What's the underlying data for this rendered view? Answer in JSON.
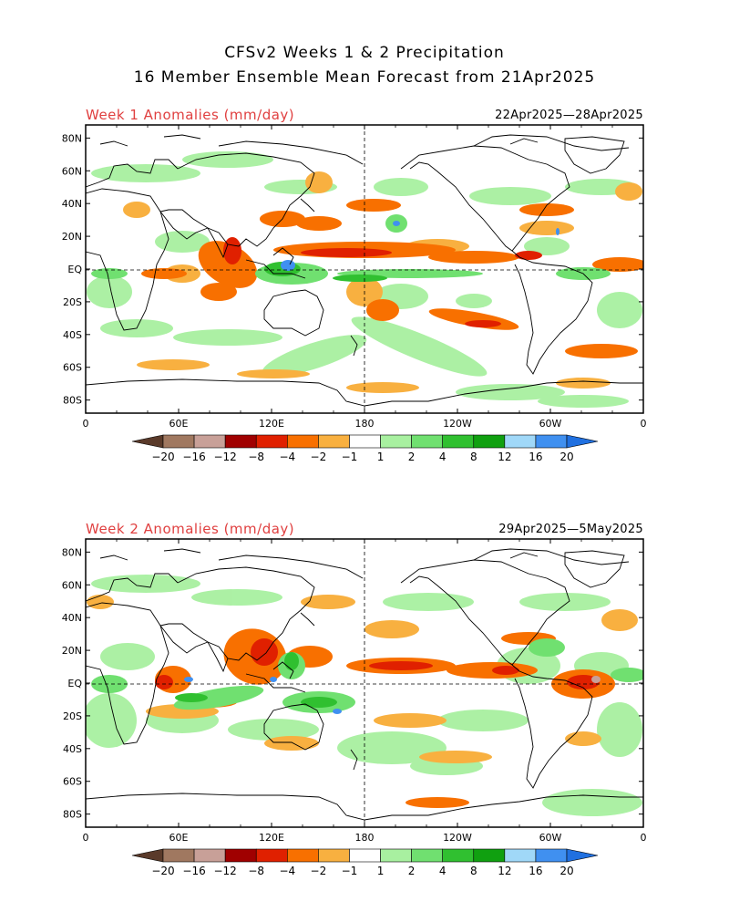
{
  "title_line1": "CFSv2 Weeks 1 & 2 Precipitation",
  "title_line2": "16 Member Ensemble Mean Forecast from 21Apr2025",
  "panels": [
    {
      "title": "Week 1 Anomalies (mm/day)",
      "dates": "22Apr2025—28Apr2025"
    },
    {
      "title": "Week 2 Anomalies (mm/day)",
      "dates": "29Apr2025—5May2025"
    }
  ],
  "lat_ticks": [
    "80N",
    "60N",
    "40N",
    "20N",
    "EQ",
    "20S",
    "40S",
    "60S",
    "80S"
  ],
  "lon_ticks": [
    "0",
    "60E",
    "120E",
    "180",
    "120W",
    "60W",
    "0"
  ],
  "colorbar": {
    "labels": [
      "−20",
      "−16",
      "−12",
      "−8",
      "−4",
      "−2",
      "−1",
      "1",
      "2",
      "4",
      "8",
      "12",
      "16",
      "20"
    ],
    "colors": [
      "#5a3a2a",
      "#a07860",
      "#c8a098",
      "#a00000",
      "#e02000",
      "#f87000",
      "#f8b040",
      "#ffffff",
      "#a8f0a0",
      "#70e070",
      "#30c030",
      "#10a010",
      "#a0d8f8",
      "#4090f0",
      "#2070e0"
    ]
  },
  "anomaly_colors": {
    "dry_strong": "#e02000",
    "dry_medium": "#f87000",
    "dry_light": "#f8b040",
    "wet_light": "#a8f0a0",
    "wet_medium": "#70e070",
    "wet_strong": "#30c030",
    "wet_extreme": "#4090f0"
  }
}
